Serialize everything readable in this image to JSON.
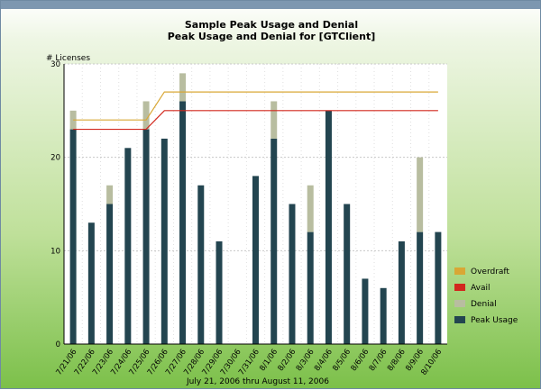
{
  "chart_data": {
    "type": "bar",
    "title": "Sample Peak Usage and Denial",
    "subtitle": "Peak Usage and Denial for [GTClient]",
    "ylabel": "# Licenses",
    "xlabel": "July 21, 2006 thru August 11, 2006",
    "ylim": [
      0,
      30
    ],
    "yticks": [
      0,
      10,
      20,
      30
    ],
    "grid": true,
    "legend_position": "right",
    "categories": [
      "7/21/06",
      "7/22/06",
      "7/23/06",
      "7/24/06",
      "7/25/06",
      "7/26/06",
      "7/27/06",
      "7/28/06",
      "7/29/06",
      "7/30/06",
      "7/31/06",
      "8/1/06",
      "8/2/06",
      "8/3/06",
      "8/4/06",
      "8/5/06",
      "8/6/06",
      "8/7/06",
      "8/8/06",
      "8/9/06",
      "8/10/06"
    ],
    "series": [
      {
        "name": "Peak Usage",
        "kind": "bar",
        "color": "#234550",
        "values": [
          23,
          13,
          15,
          21,
          23,
          22,
          26,
          17,
          11,
          0,
          18,
          22,
          15,
          12,
          25,
          15,
          7,
          6,
          11,
          12,
          12
        ]
      },
      {
        "name": "Denial",
        "kind": "stacked-bar",
        "color": "#b8bda0",
        "values": [
          2,
          0,
          2,
          0,
          3,
          0,
          3,
          0,
          0,
          0,
          0,
          4,
          0,
          5,
          0,
          0,
          0,
          0,
          0,
          8,
          0
        ]
      },
      {
        "name": "Avail",
        "kind": "line",
        "color": "#d2281e",
        "values": [
          23,
          23,
          23,
          23,
          23,
          25,
          25,
          25,
          25,
          25,
          25,
          25,
          25,
          25,
          25,
          25,
          25,
          25,
          25,
          25,
          25
        ]
      },
      {
        "name": "Overdraft",
        "kind": "line",
        "color": "#d9a735",
        "values": [
          24,
          24,
          24,
          24,
          24,
          27,
          27,
          27,
          27,
          27,
          27,
          27,
          27,
          27,
          27,
          27,
          27,
          27,
          27,
          27,
          27
        ]
      }
    ],
    "legend_order": [
      "Overdraft",
      "Avail",
      "Denial",
      "Peak Usage"
    ]
  }
}
